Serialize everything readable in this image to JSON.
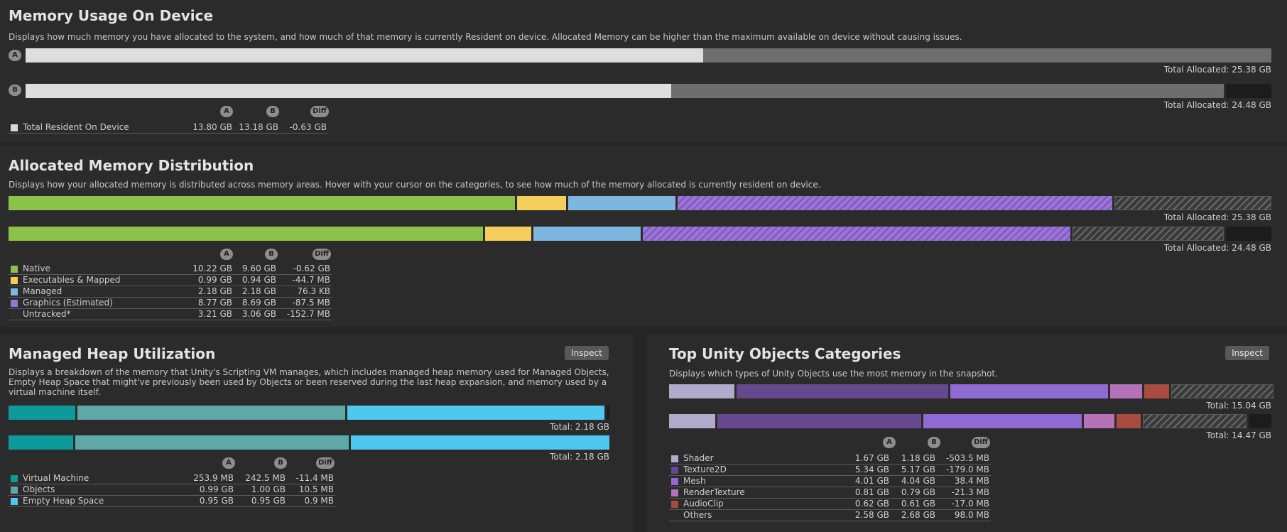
{
  "memory_usage": {
    "title": "Memory Usage On Device",
    "description": "Displays how much memory you have allocated to the system, and how much of that memory is currently Resident on device. Allocated Memory can be higher than the maximum available on device without causing issues.",
    "bar_a_label": "A",
    "bar_b_label": "B",
    "bar_a": {
      "resident_fraction": 0.5437,
      "allocated_gb": 25.38
    },
    "bar_b": {
      "resident_fraction": 0.5384,
      "allocated_gb": 24.48
    },
    "total_a": "Total Allocated: 25.38 GB",
    "total_b": "Total Allocated: 24.48 GB",
    "columns": [
      "A",
      "B",
      "Diff"
    ],
    "rows": [
      {
        "label": "Total Resident On Device",
        "a": "13.80 GB",
        "b": "13.18 GB",
        "diff": "-0.63 GB",
        "color": "#d8d8d8"
      }
    ]
  },
  "allocated_distribution": {
    "title": "Allocated Memory Distribution",
    "description": "Displays how your allocated memory is distributed across memory areas. Hover with your cursor on the categories, to see how much of the memory allocated is currently resident on device.",
    "total_a": "Total Allocated: 25.38 GB",
    "total_b": "Total Allocated: 24.48 GB",
    "columns": [
      "A",
      "B",
      "Diff"
    ],
    "rows": [
      {
        "label": "Native",
        "a": "10.22 GB",
        "b": "9.60 GB",
        "diff": "-0.62 GB",
        "color": "#8bc34a"
      },
      {
        "label": "Executables & Mapped",
        "a": "0.99 GB",
        "b": "0.94 GB",
        "diff": "-44.7 MB",
        "color": "#f5cd5a"
      },
      {
        "label": "Managed",
        "a": "2.18 GB",
        "b": "2.18 GB",
        "diff": "76.3 KB",
        "color": "#7eb6e0"
      },
      {
        "label": "Graphics (Estimated)",
        "a": "8.77 GB",
        "b": "8.69 GB",
        "diff": "-87.5 MB",
        "color": "#9a74d6"
      },
      {
        "label": "Untracked*",
        "a": "3.21 GB",
        "b": "3.06 GB",
        "diff": "-152.7 MB",
        "color": "#2e2e2e"
      }
    ]
  },
  "managed_heap": {
    "title": "Managed Heap Utilization",
    "inspect_label": "Inspect",
    "description": "Displays a breakdown of the memory that Unity's Scripting VM manages, which includes managed heap memory used for Managed Objects, Empty Heap Space that might've previously been used by Objects or been reserved during the last heap expansion, and memory used by a virtual machine itself.",
    "total_a": "Total: 2.18 GB",
    "total_b": "Total: 2.18 GB",
    "columns": [
      "A",
      "B",
      "Diff"
    ],
    "rows": [
      {
        "label": "Virtual Machine",
        "a": "253.9 MB",
        "b": "242.5 MB",
        "diff": "-11.4 MB",
        "color": "#0e9a9a"
      },
      {
        "label": "Objects",
        "a": "0.99 GB",
        "b": "1.00 GB",
        "diff": "10.5 MB",
        "color": "#5fa8a8"
      },
      {
        "label": "Empty Heap Space",
        "a": "0.95 GB",
        "b": "0.95 GB",
        "diff": "0.9 MB",
        "color": "#4ec8ef"
      }
    ]
  },
  "top_unity_objects": {
    "title": "Top Unity Objects Categories",
    "inspect_label": "Inspect",
    "description": "Displays which types of Unity Objects use the most memory in the snapshot.",
    "total_a": "Total: 15.04 GB",
    "total_b": "Total: 14.47 GB",
    "columns": [
      "A",
      "B",
      "Diff"
    ],
    "rows": [
      {
        "label": "Shader",
        "a": "1.67 GB",
        "b": "1.18 GB",
        "diff": "-503.5 MB",
        "color": "#b0aacb"
      },
      {
        "label": "Texture2D",
        "a": "5.34 GB",
        "b": "5.17 GB",
        "diff": "-179.0 MB",
        "color": "#65488e"
      },
      {
        "label": "Mesh",
        "a": "4.01 GB",
        "b": "4.04 GB",
        "diff": "38.4 MB",
        "color": "#8f6ad2"
      },
      {
        "label": "RenderTexture",
        "a": "0.81 GB",
        "b": "0.79 GB",
        "diff": "-21.3 MB",
        "color": "#b572b8"
      },
      {
        "label": "AudioClip",
        "a": "0.62 GB",
        "b": "0.61 GB",
        "diff": "-17.0 MB",
        "color": "#a84c40"
      },
      {
        "label": "Others",
        "a": "2.58 GB",
        "b": "2.68 GB",
        "diff": "98.0 MB",
        "color": ""
      }
    ]
  }
}
